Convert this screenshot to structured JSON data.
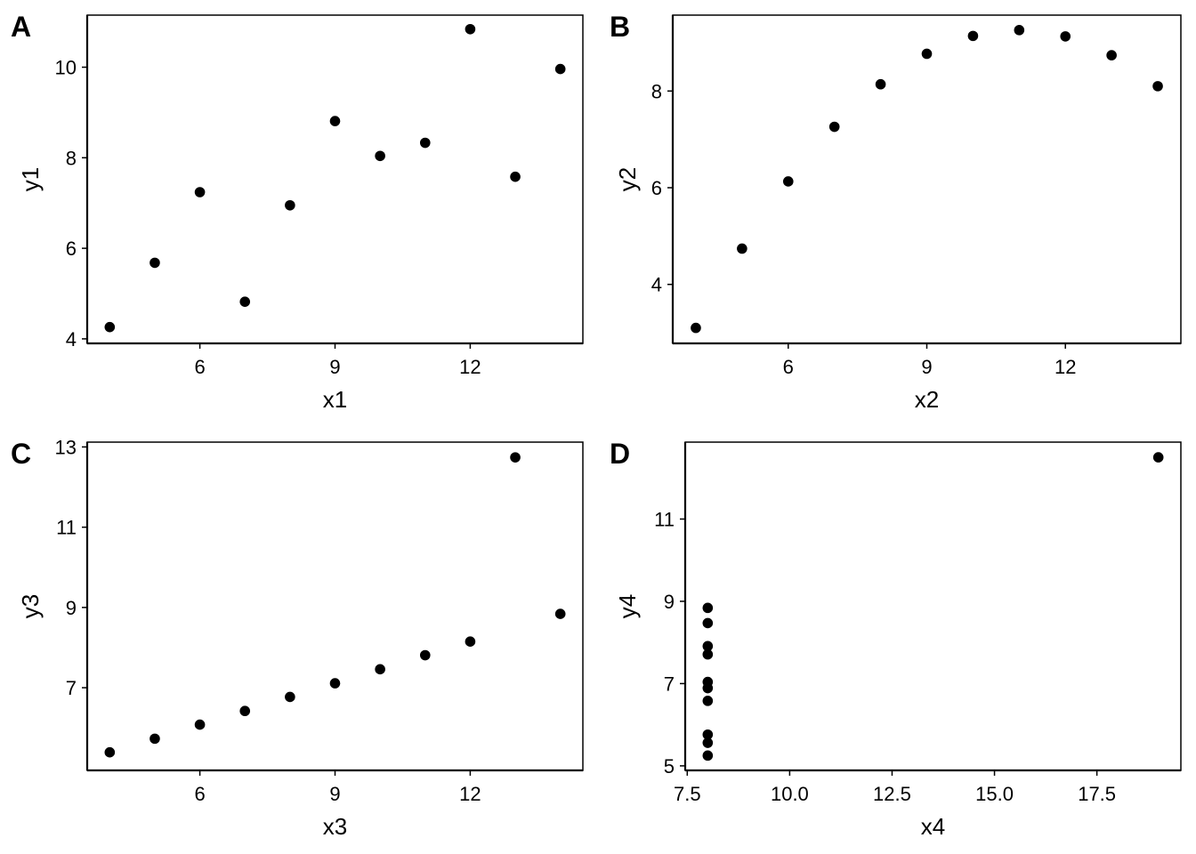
{
  "chart_data": [
    {
      "type": "scatter",
      "panel_label": "A",
      "xlabel": "x1",
      "ylabel": "y1",
      "xlim": [
        3.5,
        14.5
      ],
      "ylim": [
        3.9,
        11.15
      ],
      "xticks": [
        6,
        9,
        12
      ],
      "yticks": [
        4,
        6,
        8,
        10
      ],
      "xtick_labels": [
        "6",
        "9",
        "12"
      ],
      "ytick_labels": [
        "4",
        "6",
        "8",
        "10"
      ],
      "x": [
        10,
        8,
        13,
        9,
        11,
        14,
        6,
        4,
        12,
        7,
        5
      ],
      "y": [
        8.04,
        6.95,
        7.58,
        8.81,
        8.33,
        9.96,
        7.24,
        4.26,
        10.84,
        4.82,
        5.68
      ]
    },
    {
      "type": "scatter",
      "panel_label": "B",
      "xlabel": "x2",
      "ylabel": "y2",
      "xlim": [
        3.5,
        14.5
      ],
      "ylim": [
        2.78,
        9.57
      ],
      "xticks": [
        6,
        9,
        12
      ],
      "yticks": [
        4,
        6,
        8
      ],
      "xtick_labels": [
        "6",
        "9",
        "12"
      ],
      "ytick_labels": [
        "4",
        "6",
        "8"
      ],
      "x": [
        10,
        8,
        13,
        9,
        11,
        14,
        6,
        4,
        12,
        7,
        5
      ],
      "y": [
        9.14,
        8.14,
        8.74,
        8.77,
        9.26,
        8.1,
        6.13,
        3.1,
        9.13,
        7.26,
        4.74
      ]
    },
    {
      "type": "scatter",
      "panel_label": "C",
      "xlabel": "x3",
      "ylabel": "y3",
      "xlim": [
        3.5,
        14.5
      ],
      "ylim": [
        4.94,
        13.12
      ],
      "xticks": [
        6,
        9,
        12
      ],
      "yticks": [
        7,
        9,
        11,
        13
      ],
      "xtick_labels": [
        "6",
        "9",
        "12"
      ],
      "ytick_labels": [
        "7",
        "9",
        "11",
        "13"
      ],
      "x": [
        10,
        8,
        13,
        9,
        11,
        14,
        6,
        4,
        12,
        7,
        5
      ],
      "y": [
        7.46,
        6.77,
        12.74,
        7.11,
        7.81,
        8.84,
        6.08,
        5.39,
        8.15,
        6.42,
        5.73
      ]
    },
    {
      "type": "scatter",
      "panel_label": "D",
      "xlabel": "x4",
      "ylabel": "y4",
      "xlim": [
        7.45,
        19.55
      ],
      "ylim": [
        4.89,
        12.87
      ],
      "xticks": [
        7.5,
        10.0,
        12.5,
        15.0,
        17.5
      ],
      "yticks": [
        5,
        7,
        9,
        11
      ],
      "xtick_labels": [
        "7.5",
        "10.0",
        "12.5",
        "15.0",
        "17.5"
      ],
      "ytick_labels": [
        "5",
        "7",
        "9",
        "11"
      ],
      "x": [
        8,
        8,
        8,
        8,
        8,
        8,
        8,
        19,
        8,
        8,
        8
      ],
      "y": [
        6.58,
        5.76,
        7.71,
        8.84,
        8.47,
        7.04,
        5.25,
        12.5,
        5.56,
        7.91,
        6.89
      ]
    }
  ]
}
